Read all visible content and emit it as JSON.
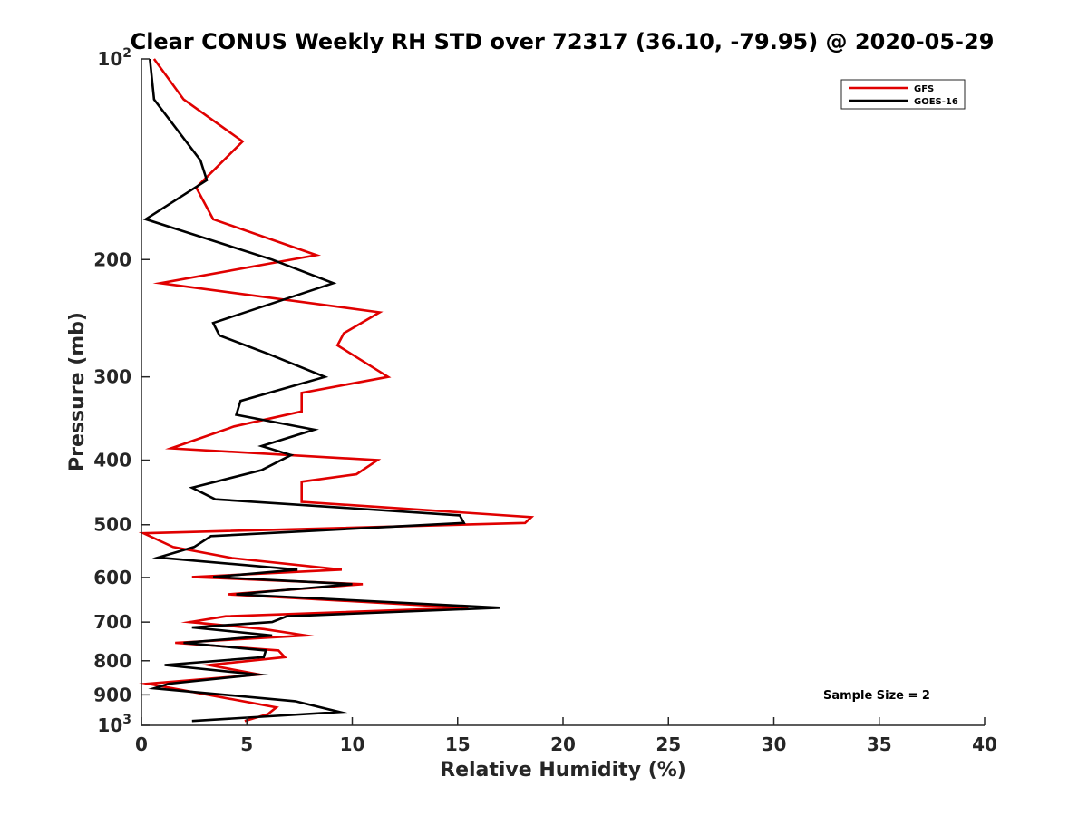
{
  "chart_data": {
    "type": "line",
    "title": "Clear CONUS Weekly RH STD over 72317 (36.10, -79.95) @ 2020-05-29",
    "xlabel": "Relative Humidity (%)",
    "ylabel": "Pressure (mb)",
    "xlim": [
      0,
      40
    ],
    "ylim": [
      100,
      1000
    ],
    "y_scale": "log",
    "y_reversed": true,
    "grid": false,
    "legend_position": "top-right",
    "x_ticks": [
      "0",
      "5",
      "10",
      "15",
      "20",
      "25",
      "30",
      "35",
      "40"
    ],
    "y_ticks": [
      {
        "value": 100,
        "base": "10",
        "exp": "2"
      },
      {
        "value": 200,
        "label": "200"
      },
      {
        "value": 300,
        "label": "300"
      },
      {
        "value": 400,
        "label": "400"
      },
      {
        "value": 500,
        "label": "500"
      },
      {
        "value": 600,
        "label": "600"
      },
      {
        "value": 700,
        "label": "700"
      },
      {
        "value": 800,
        "label": "800"
      },
      {
        "value": 900,
        "label": "900"
      },
      {
        "value": 1000,
        "base": "10",
        "exp": "3"
      }
    ],
    "annotation": "Sample Size = 2",
    "series": [
      {
        "name": "GFS",
        "color": "#e00000",
        "points": [
          [
            0.6,
            100
          ],
          [
            2.0,
            115
          ],
          [
            4.8,
            133
          ],
          [
            2.6,
            156
          ],
          [
            3.4,
            174
          ],
          [
            8.3,
            197
          ],
          [
            0.9,
            217
          ],
          [
            11.3,
            240
          ],
          [
            9.6,
            258
          ],
          [
            9.3,
            269
          ],
          [
            11.7,
            300
          ],
          [
            7.6,
            317
          ],
          [
            7.6,
            338
          ],
          [
            4.4,
            356
          ],
          [
            1.4,
            384
          ],
          [
            11.2,
            400
          ],
          [
            10.2,
            420
          ],
          [
            7.6,
            431
          ],
          [
            7.6,
            462
          ],
          [
            18.5,
            487
          ],
          [
            18.2,
            497
          ],
          [
            0.1,
            515
          ],
          [
            1.5,
            540
          ],
          [
            4.3,
            561
          ],
          [
            9.5,
            584
          ],
          [
            2.4,
            599
          ],
          [
            10.5,
            614
          ],
          [
            4.1,
            636
          ],
          [
            15.5,
            666
          ],
          [
            4.0,
            686
          ],
          [
            2.3,
            700
          ],
          [
            5.8,
            717
          ],
          [
            7.8,
            733
          ],
          [
            1.6,
            752
          ],
          [
            6.5,
            772
          ],
          [
            6.8,
            790
          ],
          [
            3.2,
            812
          ],
          [
            5.6,
            839
          ],
          [
            0.3,
            866
          ],
          [
            6.4,
            940
          ],
          [
            6.0,
            962
          ],
          [
            4.9,
            985
          ]
        ]
      },
      {
        "name": "GOES-16",
        "color": "#000000",
        "points": [
          [
            0.4,
            100
          ],
          [
            0.6,
            115
          ],
          [
            2.8,
            142
          ],
          [
            3.1,
            152
          ],
          [
            0.2,
            174
          ],
          [
            6.2,
            200
          ],
          [
            9.1,
            217
          ],
          [
            3.4,
            249
          ],
          [
            3.7,
            260
          ],
          [
            6.0,
            277
          ],
          [
            8.7,
            300
          ],
          [
            4.7,
            326
          ],
          [
            4.5,
            342
          ],
          [
            8.2,
            360
          ],
          [
            5.7,
            381
          ],
          [
            7.1,
            393
          ],
          [
            5.7,
            414
          ],
          [
            2.4,
            440
          ],
          [
            3.5,
            458
          ],
          [
            15.1,
            484
          ],
          [
            15.3,
            497
          ],
          [
            3.3,
            520
          ],
          [
            2.5,
            540
          ],
          [
            0.8,
            560
          ],
          [
            7.4,
            584
          ],
          [
            3.4,
            599
          ],
          [
            10.0,
            614
          ],
          [
            4.5,
            636
          ],
          [
            17.0,
            666
          ],
          [
            6.9,
            686
          ],
          [
            6.2,
            700
          ],
          [
            2.4,
            713
          ],
          [
            6.2,
            733
          ],
          [
            2.0,
            752
          ],
          [
            5.9,
            772
          ],
          [
            5.8,
            790
          ],
          [
            1.1,
            812
          ],
          [
            5.5,
            839
          ],
          [
            1.3,
            866
          ],
          [
            0.6,
            880
          ],
          [
            7.3,
            920
          ],
          [
            9.4,
            955
          ],
          [
            2.4,
            985
          ]
        ]
      }
    ]
  }
}
